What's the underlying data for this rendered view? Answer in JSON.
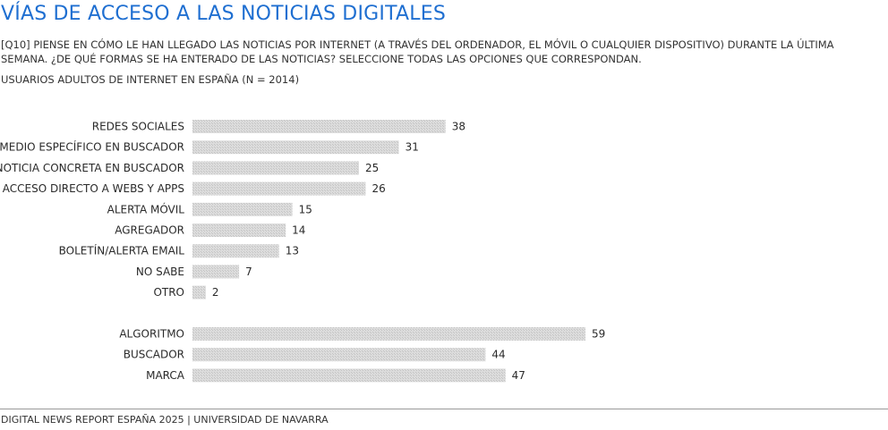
{
  "header": {
    "title": "VÍAS DE ACCESO A LAS NOTICIAS DIGITALES",
    "question": "[Q10] PIENSE EN CÓMO LE HAN LLEGADO LAS NOTICIAS POR INTERNET (A TRAVÉS DEL ORDENADOR, EL MÓVIL O CUALQUIER DISPOSITIVO) DURANTE LA ÚLTIMA SEMANA. ¿DE QUÉ FORMAS SE HA ENTERADO DE LAS NOTICIAS? SELECCIONE TODAS LAS OPCIONES QUE CORRESPONDAN.",
    "population": "USUARIOS ADULTOS DE INTERNET EN ESPAÑA (N = 2014)"
  },
  "footer": {
    "source": "DIGITAL NEWS REPORT ESPAÑA 2025 | UNIVERSIDAD DE NAVARRA"
  },
  "chart_data": {
    "type": "bar",
    "orientation": "horizontal",
    "title": "VÍAS DE ACCESO A LAS NOTICIAS DIGITALES",
    "xlabel": "",
    "ylabel": "",
    "grid": false,
    "legend": "none",
    "xlim": [
      0,
      100
    ],
    "bar_color": "#d4d4d4",
    "groups": [
      {
        "categories": [
          "REDES SOCIALES",
          "MEDIO ESPECÍFICO EN BUSCADOR",
          "NOTICIA CONCRETA EN BUSCADOR",
          "ACCESO DIRECTO A WEBS Y APPS",
          "ALERTA MÓVIL",
          "AGREGADOR",
          "BOLETÍN/ALERTA EMAIL",
          "NO SABE",
          "OTRO"
        ],
        "values": [
          38,
          31,
          25,
          26,
          15,
          14,
          13,
          7,
          2
        ]
      },
      {
        "categories": [
          "ALGORITMO",
          "BUSCADOR",
          "MARCA"
        ],
        "values": [
          59,
          44,
          47
        ]
      }
    ]
  }
}
